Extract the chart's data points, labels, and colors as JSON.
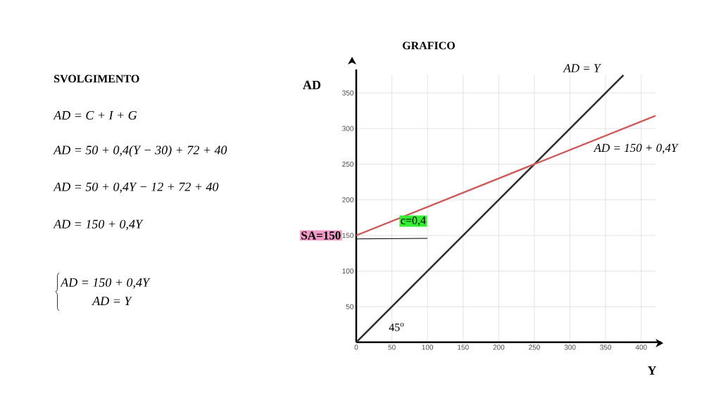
{
  "chart_data": {
    "type": "line",
    "title": "GRAFICO",
    "xlabel": "Y",
    "ylabel": "AD",
    "xlim": [
      0,
      420
    ],
    "ylim": [
      0,
      375
    ],
    "xticks": [
      0,
      50,
      100,
      150,
      200,
      250,
      300,
      350,
      400
    ],
    "yticks": [
      50,
      100,
      150,
      200,
      250,
      300,
      350
    ],
    "grid": true,
    "series": [
      {
        "name": "AD = Y",
        "color": "#2b2b2b",
        "x": [
          0,
          375
        ],
        "values": [
          0,
          375
        ]
      },
      {
        "name": "AD = 150 + 0,4Y",
        "color": "#cd5c5c",
        "x": [
          0,
          420
        ],
        "values": [
          150,
          318
        ]
      },
      {
        "color": "#000000",
        "x": [
          0,
          100
        ],
        "values": [
          145,
          146
        ]
      }
    ],
    "annotations": [
      {
        "text": "SA=150",
        "x": 0,
        "y": 150
      },
      {
        "text": "c=0,4",
        "x": 80,
        "y": 170
      },
      "SVOLGIMENTO",
      "AD = C + I + G",
      "AD = 50 + 0,4(Y − 30) + 72 + 40",
      "AD = 50 + 0,4Y − 12 + 72 + 40",
      "AD = 150 + 0,4Y",
      "AD = 150 + 0,4Y",
      "AD = Y",
      "45$^{o}$"
    ]
  }
}
